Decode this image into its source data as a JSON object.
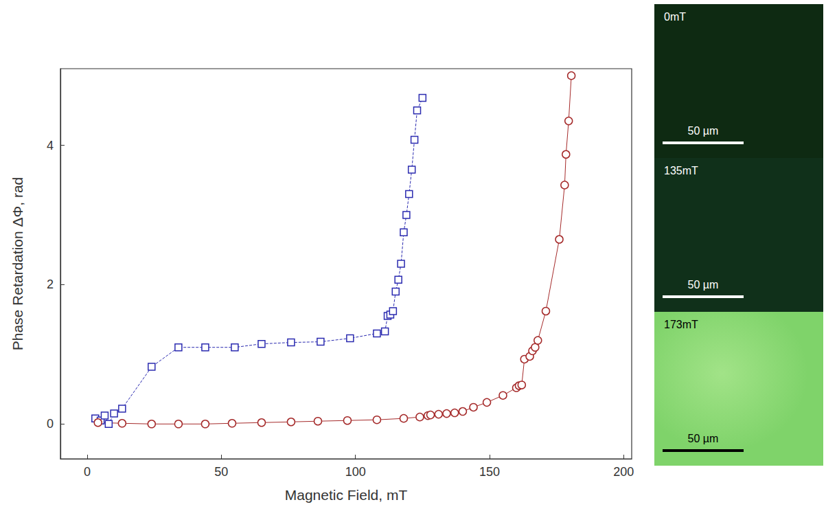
{
  "chart_data": {
    "type": "line",
    "x_label": "Magnetic Field, mT",
    "y_label": "Phase Retardation ΔΦ, rad",
    "xlim": [
      -10,
      203
    ],
    "xticks": [
      0,
      50,
      100,
      150,
      200
    ],
    "ylim": [
      -0.5,
      5.1
    ],
    "yticks": [
      0,
      2,
      4
    ],
    "grid": false,
    "series": [
      {
        "color": "#2b2bb0",
        "marker": "square",
        "line_style": "dashed",
        "x": [
          3,
          5,
          6.5,
          8,
          10,
          13,
          24,
          34,
          44,
          55,
          65,
          76,
          87,
          98,
          108,
          111,
          112,
          113,
          114,
          115,
          116,
          117,
          118,
          119,
          120,
          121,
          122,
          123,
          125
        ],
        "values": [
          0.08,
          0.05,
          0.12,
          0.0,
          0.15,
          0.22,
          0.82,
          1.1,
          1.1,
          1.1,
          1.15,
          1.17,
          1.18,
          1.23,
          1.3,
          1.33,
          1.55,
          1.57,
          1.62,
          1.9,
          2.07,
          2.3,
          2.75,
          3.0,
          3.3,
          3.65,
          4.08,
          4.5,
          4.68
        ]
      },
      {
        "color": "#a52a2a",
        "marker": "circle",
        "line_style": "solid",
        "x": [
          4,
          13,
          24,
          34,
          44,
          54,
          65,
          76,
          86,
          97,
          108,
          118,
          124,
          127,
          128,
          131,
          134,
          137,
          140,
          144,
          149,
          155,
          160,
          161,
          162,
          163,
          165,
          166,
          167,
          168,
          171,
          176,
          178,
          178.5,
          179.5,
          180.5
        ],
        "values": [
          0.02,
          0.01,
          0.0,
          0.0,
          0.0,
          0.01,
          0.02,
          0.03,
          0.04,
          0.05,
          0.06,
          0.08,
          0.1,
          0.12,
          0.13,
          0.14,
          0.15,
          0.16,
          0.18,
          0.24,
          0.31,
          0.41,
          0.52,
          0.55,
          0.56,
          0.93,
          0.97,
          1.05,
          1.1,
          1.2,
          1.62,
          2.65,
          3.43,
          3.87,
          4.35,
          5.0
        ]
      }
    ]
  },
  "panels": [
    {
      "label": "0mT",
      "scale_bar": "50 µm",
      "color": "#0e2a12"
    },
    {
      "label": "135mT",
      "scale_bar": "50 µm",
      "color": "#10301a"
    },
    {
      "label": "173mT",
      "scale_bar": "50 µm",
      "color": "#7fd36a"
    }
  ]
}
